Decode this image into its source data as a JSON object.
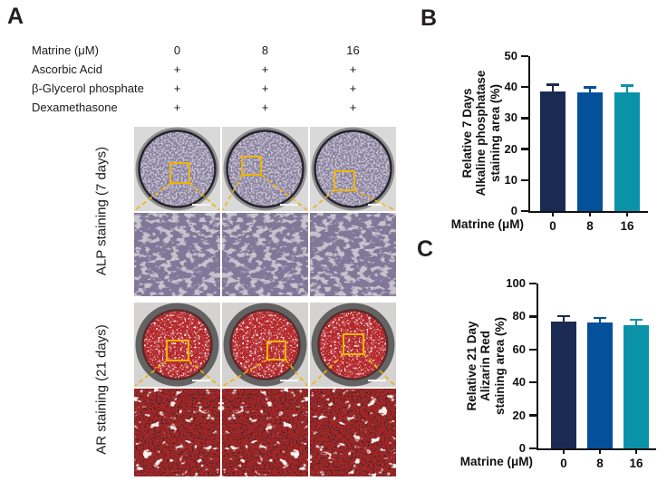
{
  "panels": {
    "a": {
      "label": "A",
      "conditions": [
        {
          "label": "Matrine (μM)",
          "values": [
            "0",
            "8",
            "16"
          ]
        },
        {
          "label": "Ascorbic Acid",
          "values": [
            "+",
            "+",
            "+"
          ]
        },
        {
          "label": "β-Glycerol phosphate",
          "values": [
            "+",
            "+",
            "+"
          ]
        },
        {
          "label": "Dexamethasone",
          "values": [
            "+",
            "+",
            "+"
          ]
        }
      ],
      "row_groups": [
        {
          "label": "ALP staining (7 days)"
        },
        {
          "label": "AR staining (21 days)"
        }
      ],
      "highlight_color": "#f0b400"
    },
    "b": {
      "label": "B"
    },
    "c": {
      "label": "C"
    }
  },
  "chart_data": [
    {
      "id": "alp_chart",
      "panel": "B",
      "type": "bar",
      "categories": [
        "0",
        "8",
        "16"
      ],
      "values": [
        38.5,
        38.3,
        38.2
      ],
      "errors": [
        2.0,
        1.2,
        1.9
      ],
      "bar_colors": [
        "#1b2a52",
        "#05509b",
        "#0a93a8"
      ],
      "xlabel": "Matrine (μM)",
      "ylabel_lines": [
        "Relative 7 Days",
        "Alkaline phosphatase",
        "staining area (%)"
      ],
      "ylim": [
        0,
        50
      ],
      "yticks": [
        0,
        10,
        20,
        30,
        40,
        50
      ],
      "grid": "off",
      "legend": "none"
    },
    {
      "id": "ar_chart",
      "panel": "C",
      "type": "bar",
      "categories": [
        "0",
        "8",
        "16"
      ],
      "values": [
        77,
        76.5,
        74.5
      ],
      "errors": [
        2.5,
        2.0,
        2.8
      ],
      "bar_colors": [
        "#1b2a52",
        "#05509b",
        "#0a93a8"
      ],
      "xlabel": "Matrine (μM)",
      "ylabel_lines": [
        "Relative 21 Day",
        "Alizarin Red",
        "staining area (%)"
      ],
      "ylim": [
        0,
        100
      ],
      "yticks": [
        0,
        20,
        40,
        60,
        80,
        100
      ],
      "grid": "off",
      "legend": "none"
    }
  ]
}
